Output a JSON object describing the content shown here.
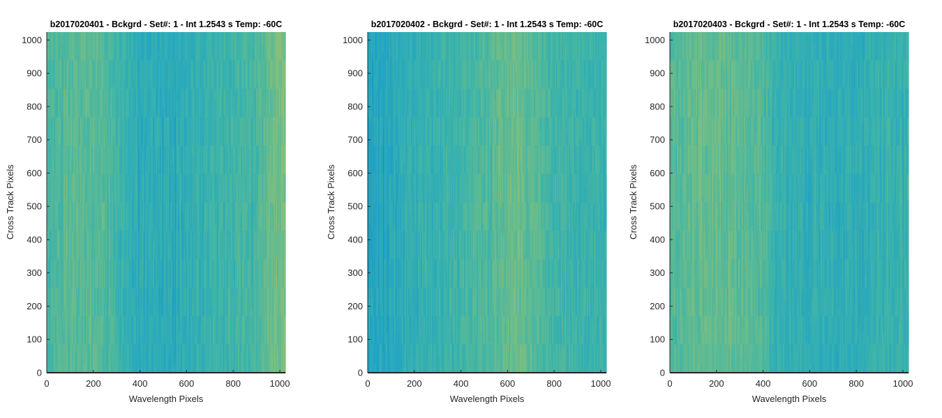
{
  "chart_data": [
    {
      "type": "heatmap",
      "title": "b2017020401 - Bckgrd - Set#: 1 - Int 1.2543 s Temp: -60C",
      "xlabel": "Wavelength Pixels",
      "ylabel": "Cross Track Pixels",
      "xlim": [
        0,
        1024
      ],
      "ylim": [
        0,
        1024
      ],
      "xticks": [
        0,
        200,
        400,
        600,
        800,
        1000
      ],
      "yticks": [
        0,
        100,
        200,
        300,
        400,
        500,
        600,
        700,
        800,
        900,
        1000
      ],
      "column_profile": [
        {
          "x": 0,
          "level": 0.55
        },
        {
          "x": 100,
          "level": 0.6
        },
        {
          "x": 200,
          "level": 0.62
        },
        {
          "x": 300,
          "level": 0.5
        },
        {
          "x": 400,
          "level": 0.38
        },
        {
          "x": 500,
          "level": 0.36
        },
        {
          "x": 600,
          "level": 0.4
        },
        {
          "x": 700,
          "level": 0.46
        },
        {
          "x": 800,
          "level": 0.5
        },
        {
          "x": 900,
          "level": 0.55
        },
        {
          "x": 1000,
          "level": 0.75
        },
        {
          "x": 1024,
          "level": 0.72
        }
      ]
    },
    {
      "type": "heatmap",
      "title": "b2017020402 - Bckgrd - Set#: 1 - Int 1.2543 s Temp: -60C",
      "xlabel": "Wavelength Pixels",
      "ylabel": "Cross Track Pixels",
      "xlim": [
        0,
        1024
      ],
      "ylim": [
        0,
        1024
      ],
      "xticks": [
        0,
        200,
        400,
        600,
        800,
        1000
      ],
      "yticks": [
        0,
        100,
        200,
        300,
        400,
        500,
        600,
        700,
        800,
        900,
        1000
      ],
      "column_profile": [
        {
          "x": 0,
          "level": 0.3
        },
        {
          "x": 100,
          "level": 0.34
        },
        {
          "x": 200,
          "level": 0.42
        },
        {
          "x": 300,
          "level": 0.46
        },
        {
          "x": 400,
          "level": 0.5
        },
        {
          "x": 500,
          "level": 0.56
        },
        {
          "x": 600,
          "level": 0.66
        },
        {
          "x": 650,
          "level": 0.68
        },
        {
          "x": 700,
          "level": 0.6
        },
        {
          "x": 800,
          "level": 0.52
        },
        {
          "x": 900,
          "level": 0.48
        },
        {
          "x": 1024,
          "level": 0.46
        }
      ]
    },
    {
      "type": "heatmap",
      "title": "b2017020403 - Bckgrd - Set#: 1 - Int 1.2543 s Temp: -60C",
      "xlabel": "Wavelength Pixels",
      "ylabel": "Cross Track Pixels",
      "xlim": [
        0,
        1024
      ],
      "ylim": [
        0,
        1024
      ],
      "xticks": [
        0,
        200,
        400,
        600,
        800,
        1000
      ],
      "yticks": [
        0,
        100,
        200,
        300,
        400,
        500,
        600,
        700,
        800,
        900,
        1000
      ],
      "column_profile": [
        {
          "x": 0,
          "level": 0.56
        },
        {
          "x": 100,
          "level": 0.64
        },
        {
          "x": 200,
          "level": 0.66
        },
        {
          "x": 300,
          "level": 0.62
        },
        {
          "x": 400,
          "level": 0.58
        },
        {
          "x": 450,
          "level": 0.46
        },
        {
          "x": 500,
          "level": 0.42
        },
        {
          "x": 600,
          "level": 0.4
        },
        {
          "x": 700,
          "level": 0.38
        },
        {
          "x": 800,
          "level": 0.4
        },
        {
          "x": 900,
          "level": 0.44
        },
        {
          "x": 1024,
          "level": 0.46
        }
      ]
    }
  ],
  "colormap": [
    "#0f78c8",
    "#1ea3c8",
    "#3eb5a8",
    "#7cbf7f",
    "#b7c261"
  ]
}
